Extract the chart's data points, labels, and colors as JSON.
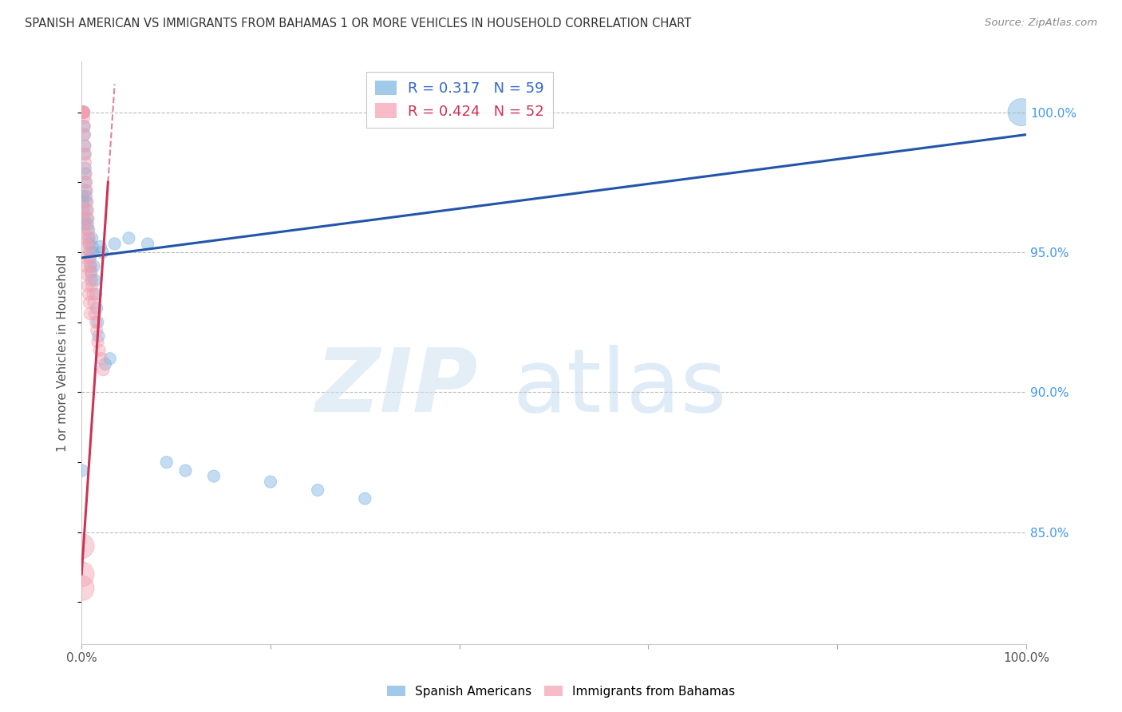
{
  "title": "SPANISH AMERICAN VS IMMIGRANTS FROM BAHAMAS 1 OR MORE VEHICLES IN HOUSEHOLD CORRELATION CHART",
  "source": "Source: ZipAtlas.com",
  "ylabel": "1 or more Vehicles in Household",
  "xlim": [
    0.0,
    100.0
  ],
  "ylim": [
    81.0,
    101.8
  ],
  "ytick_positions": [
    85.0,
    90.0,
    95.0,
    100.0
  ],
  "ytick_labels": [
    "85.0%",
    "90.0%",
    "95.0%",
    "100.0%"
  ],
  "grid_color": "#bbbbbb",
  "background_color": "#ffffff",
  "blue_color": "#7ab3e0",
  "pink_color": "#f4a0b0",
  "blue_line_color": "#2255aa",
  "pink_line_color": "#cc3355",
  "R_blue": 0.317,
  "N_blue": 59,
  "R_pink": 0.424,
  "N_pink": 52,
  "legend_blue": "Spanish Americans",
  "legend_pink": "Immigrants from Bahamas",
  "blue_line_x0": 0.0,
  "blue_line_y0": 94.8,
  "blue_line_x1": 100.0,
  "blue_line_y1": 99.2,
  "pink_line_x0": 0.0,
  "pink_line_y0": 83.5,
  "pink_line_x1": 2.8,
  "pink_line_y1": 97.5,
  "pink_dash_x0": 2.8,
  "pink_dash_y0": 97.5,
  "pink_dash_x1": 3.5,
  "pink_dash_y1": 101.0,
  "blue_scatter_x": [
    0.05,
    0.08,
    0.1,
    0.12,
    0.15,
    0.18,
    0.2,
    0.22,
    0.25,
    0.28,
    0.3,
    0.33,
    0.35,
    0.38,
    0.4,
    0.42,
    0.45,
    0.48,
    0.5,
    0.55,
    0.6,
    0.65,
    0.7,
    0.75,
    0.8,
    0.85,
    0.9,
    0.95,
    1.0,
    1.05,
    1.1,
    1.15,
    1.2,
    1.3,
    1.4,
    1.5,
    1.6,
    1.7,
    1.8,
    2.0,
    2.2,
    2.5,
    3.0,
    3.5,
    5.0,
    7.0,
    9.0,
    11.0,
    14.0,
    20.0,
    25.0,
    30.0,
    0.1,
    0.15,
    0.2,
    0.25,
    0.3,
    99.5,
    0.05
  ],
  "blue_scatter_y": [
    100.0,
    100.0,
    100.0,
    100.0,
    100.0,
    100.0,
    100.0,
    100.0,
    100.0,
    99.5,
    99.2,
    98.8,
    98.5,
    98.0,
    97.8,
    97.5,
    97.2,
    97.0,
    96.8,
    96.5,
    96.2,
    96.0,
    95.8,
    95.5,
    95.3,
    95.0,
    94.8,
    94.5,
    94.3,
    94.0,
    95.5,
    95.2,
    95.0,
    94.5,
    94.0,
    93.5,
    93.0,
    92.5,
    92.0,
    95.2,
    95.0,
    91.0,
    91.2,
    95.3,
    95.5,
    95.3,
    87.5,
    87.2,
    87.0,
    86.8,
    86.5,
    86.2,
    97.0,
    96.8,
    96.5,
    96.2,
    96.0,
    100.0,
    87.2
  ],
  "blue_scatter_s": [
    120,
    120,
    120,
    120,
    120,
    120,
    120,
    120,
    120,
    120,
    120,
    120,
    120,
    120,
    120,
    120,
    120,
    120,
    120,
    120,
    120,
    120,
    120,
    120,
    120,
    120,
    120,
    120,
    120,
    120,
    120,
    120,
    120,
    120,
    120,
    120,
    120,
    120,
    120,
    120,
    120,
    120,
    120,
    120,
    120,
    120,
    120,
    120,
    120,
    120,
    120,
    120,
    120,
    120,
    120,
    120,
    120,
    600,
    120
  ],
  "pink_scatter_x": [
    0.02,
    0.05,
    0.08,
    0.1,
    0.12,
    0.15,
    0.18,
    0.2,
    0.22,
    0.25,
    0.28,
    0.3,
    0.35,
    0.38,
    0.4,
    0.45,
    0.5,
    0.55,
    0.6,
    0.65,
    0.7,
    0.75,
    0.8,
    0.85,
    0.9,
    0.95,
    1.0,
    1.1,
    1.2,
    1.3,
    1.4,
    1.5,
    1.6,
    1.7,
    1.9,
    2.1,
    2.3,
    0.12,
    0.18,
    0.25,
    0.32,
    0.38,
    0.45,
    0.52,
    0.6,
    0.68,
    0.75,
    0.82,
    0.9,
    0.02,
    0.02,
    0.02
  ],
  "pink_scatter_y": [
    100.0,
    100.0,
    100.0,
    100.0,
    100.0,
    100.0,
    100.0,
    100.0,
    100.0,
    99.8,
    99.5,
    99.2,
    98.8,
    98.5,
    98.2,
    97.8,
    97.5,
    97.2,
    96.8,
    96.5,
    96.2,
    95.8,
    95.5,
    95.2,
    94.8,
    94.5,
    94.2,
    93.8,
    93.5,
    93.2,
    92.8,
    92.5,
    92.2,
    91.8,
    91.5,
    91.2,
    90.8,
    96.5,
    96.2,
    95.8,
    95.5,
    95.2,
    94.8,
    94.5,
    94.2,
    93.8,
    93.5,
    93.2,
    92.8,
    84.5,
    83.5,
    83.0
  ],
  "pink_scatter_s": [
    120,
    120,
    120,
    120,
    120,
    120,
    120,
    120,
    120,
    120,
    120,
    120,
    120,
    120,
    120,
    120,
    120,
    120,
    120,
    120,
    120,
    120,
    120,
    120,
    120,
    120,
    120,
    120,
    120,
    120,
    120,
    120,
    120,
    120,
    120,
    120,
    120,
    120,
    120,
    120,
    120,
    120,
    120,
    120,
    120,
    120,
    120,
    120,
    120,
    500,
    500,
    500
  ]
}
